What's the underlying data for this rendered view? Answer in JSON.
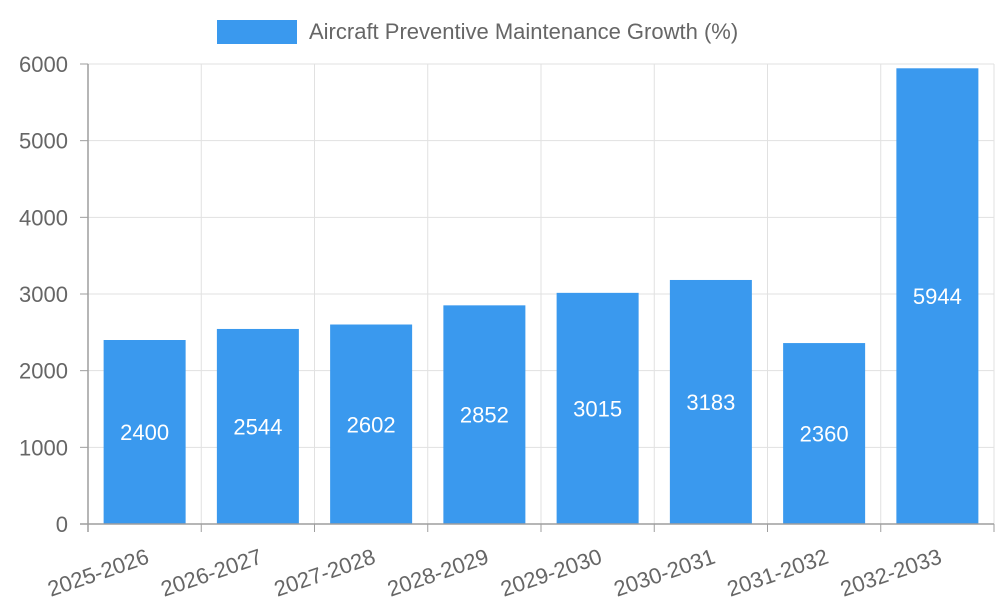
{
  "chart_data": {
    "type": "bar",
    "categories": [
      "2025-2026",
      "2026-2027",
      "2027-2028",
      "2028-2029",
      "2029-2030",
      "2030-2031",
      "2031-2032",
      "2032-2033"
    ],
    "series": [
      {
        "name": "Aircraft Preventive Maintenance Growth (%)",
        "color": "#3a99ee",
        "values": [
          2400,
          2544,
          2602,
          2852,
          3015,
          3183,
          2360,
          5944
        ]
      }
    ],
    "yticks": [
      "0",
      "1000",
      "2000",
      "3000",
      "4000",
      "5000",
      "6000"
    ],
    "ylim": [
      0,
      6000
    ],
    "grid": true,
    "legend_position": "top"
  }
}
